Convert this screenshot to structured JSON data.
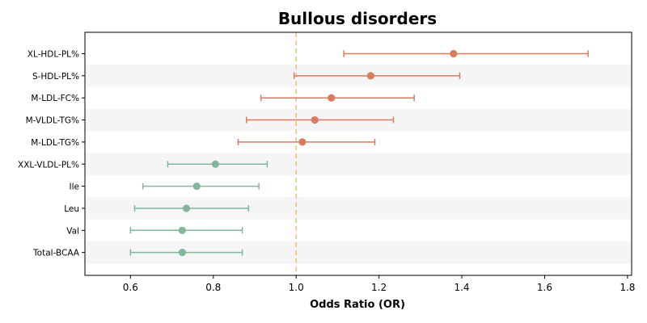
{
  "chart_data": {
    "type": "scatter",
    "subtype": "forest-plot",
    "title": "Bullous disorders",
    "xlabel": "Odds Ratio (OR)",
    "ylabel": "",
    "xlim": [
      0.49,
      1.81
    ],
    "xticks": [
      0.6,
      0.8,
      1.0,
      1.2,
      1.4,
      1.6,
      1.8
    ],
    "xtick_labels": [
      "0.6",
      "0.8",
      "1.0",
      "1.2",
      "1.4",
      "1.6",
      "1.8"
    ],
    "reference_line": 1.0,
    "reference_color": "#f5c27a",
    "grid": false,
    "legend": "none",
    "colors": {
      "risk": "#d97b5e",
      "protective": "#82b79b",
      "stripe": "#f5f5f5"
    },
    "categories": [
      "XL-HDL-PL%",
      "S-HDL-PL%",
      "M-LDL-FC%",
      "M-VLDL-TG%",
      "M-LDL-TG%",
      "XXL-VLDL-PL%",
      "Ile",
      "Leu",
      "Val",
      "Total-BCAA"
    ],
    "points": [
      {
        "label": "XL-HDL-PL%",
        "or": 1.38,
        "lower": 1.115,
        "upper": 1.705,
        "group": "risk"
      },
      {
        "label": "S-HDL-PL%",
        "or": 1.18,
        "lower": 0.995,
        "upper": 1.395,
        "group": "risk"
      },
      {
        "label": "M-LDL-FC%",
        "or": 1.085,
        "lower": 0.915,
        "upper": 1.285,
        "group": "risk"
      },
      {
        "label": "M-VLDL-TG%",
        "or": 1.045,
        "lower": 0.88,
        "upper": 1.235,
        "group": "risk"
      },
      {
        "label": "M-LDL-TG%",
        "or": 1.015,
        "lower": 0.86,
        "upper": 1.19,
        "group": "risk"
      },
      {
        "label": "XXL-VLDL-PL%",
        "or": 0.805,
        "lower": 0.69,
        "upper": 0.93,
        "group": "protective"
      },
      {
        "label": "Ile",
        "or": 0.76,
        "lower": 0.63,
        "upper": 0.91,
        "group": "protective"
      },
      {
        "label": "Leu",
        "or": 0.735,
        "lower": 0.61,
        "upper": 0.885,
        "group": "protective"
      },
      {
        "label": "Val",
        "or": 0.725,
        "lower": 0.6,
        "upper": 0.87,
        "group": "protective"
      },
      {
        "label": "Total-BCAA",
        "or": 0.725,
        "lower": 0.6,
        "upper": 0.87,
        "group": "protective"
      }
    ]
  }
}
